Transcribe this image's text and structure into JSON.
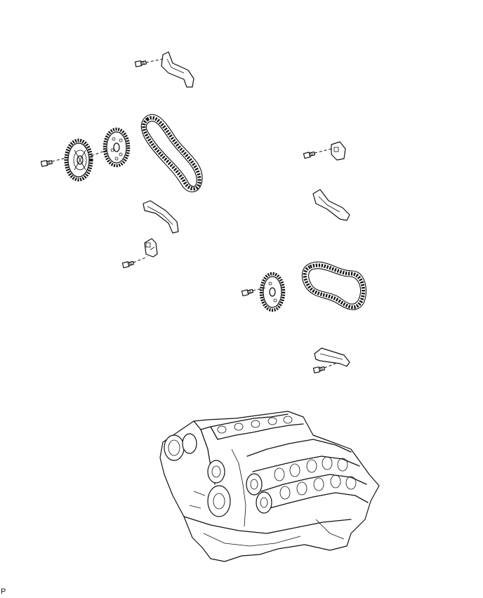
{
  "figure": {
    "corner_code": "P"
  }
}
